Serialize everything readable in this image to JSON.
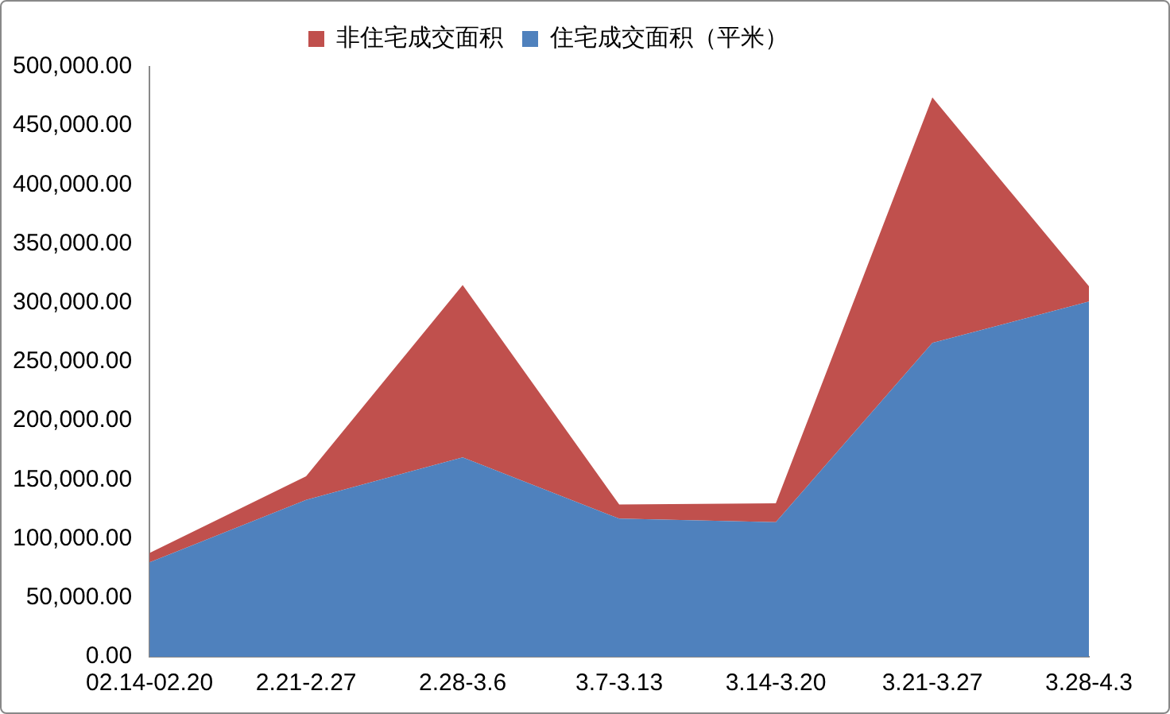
{
  "chart_data": {
    "type": "area",
    "stacked": true,
    "grid": false,
    "legend": "top",
    "categories": [
      "02.14-02.20",
      "2.21-2.27",
      "2.28-3.6",
      "3.7-3.13",
      "3.14-3.20",
      "3.21-3.27",
      "3.28-4.3"
    ],
    "series": [
      {
        "name": "住宅成交面积（平米）",
        "color": "#4f81bd",
        "values": [
          80000,
          133000,
          169000,
          117000,
          114000,
          266000,
          301000
        ]
      },
      {
        "name": "非住宅成交面积",
        "color": "#c0504d",
        "values": [
          8000,
          20000,
          146000,
          12000,
          16000,
          208000,
          13000
        ]
      }
    ],
    "ylim": [
      0,
      500000
    ],
    "yticks": [
      {
        "value": 0,
        "label": "0.00"
      },
      {
        "value": 50000,
        "label": "50,000.00"
      },
      {
        "value": 100000,
        "label": "100,000.00"
      },
      {
        "value": 150000,
        "label": "150,000.00"
      },
      {
        "value": 200000,
        "label": "200,000.00"
      },
      {
        "value": 250000,
        "label": "250,000.00"
      },
      {
        "value": 300000,
        "label": "300,000.00"
      },
      {
        "value": 350000,
        "label": "350,000.00"
      },
      {
        "value": 400000,
        "label": "400,000.00"
      },
      {
        "value": 450000,
        "label": "450,000.00"
      },
      {
        "value": 500000,
        "label": "500,000.00"
      }
    ]
  }
}
